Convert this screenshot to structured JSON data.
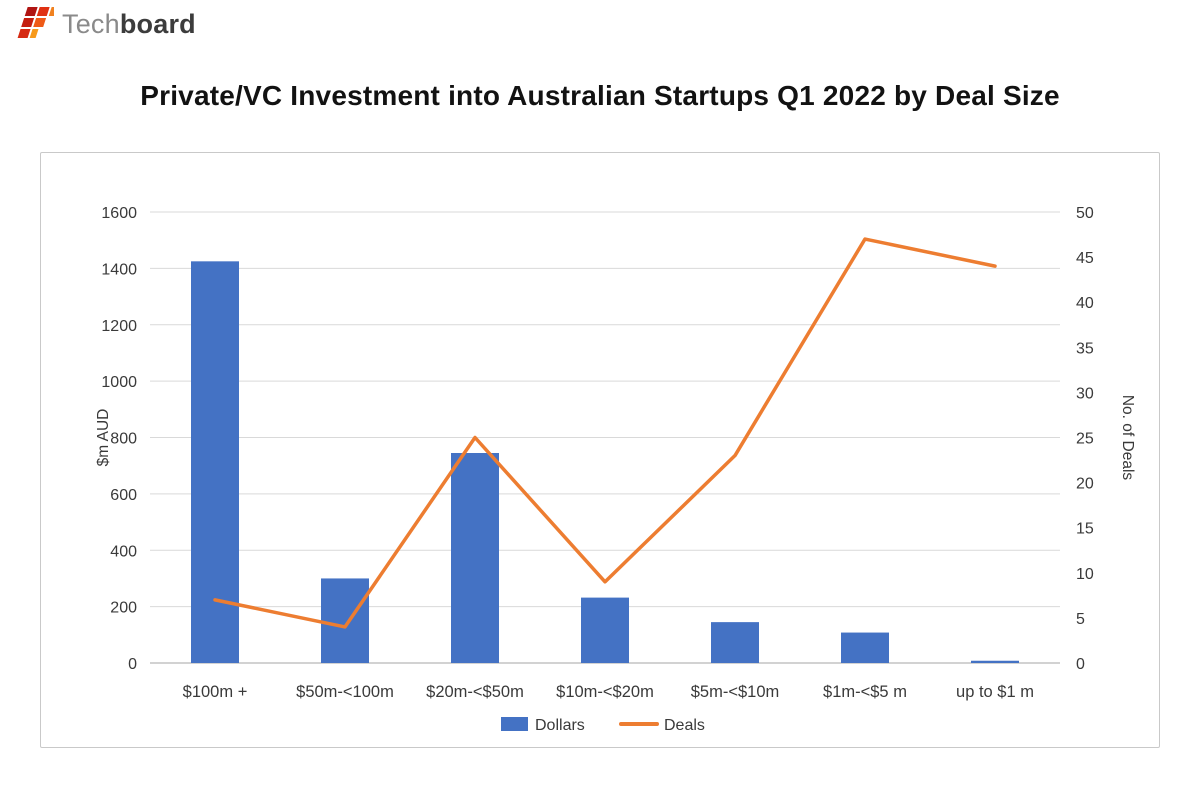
{
  "brand": {
    "name_light": "Tech",
    "name_bold": "board"
  },
  "page_title": "Private/VC Investment into Australian Startups Q1 2022 by Deal Size",
  "chart_data": {
    "type": "bar+line",
    "title": "Private/VC Investment into Australian Startups Q1 2022 by Deal Size",
    "categories": [
      "$100m +",
      "$50m-<100m",
      "$20m-<$50m",
      "$10m-<$20m",
      "$5m-<$10m",
      "$1m-<$5 m",
      "up to $1 m"
    ],
    "series": [
      {
        "name": "Dollars",
        "type": "bar",
        "axis": "left",
        "color": "#4472C4",
        "values": [
          1425,
          300,
          745,
          232,
          145,
          108,
          8
        ]
      },
      {
        "name": "Deals",
        "type": "line",
        "axis": "right",
        "color": "#ED7D31",
        "values": [
          7,
          4,
          25,
          9,
          23,
          47,
          44
        ]
      }
    ],
    "left_axis": {
      "label": "$m AUD",
      "min": 0,
      "max": 1600,
      "step": 200
    },
    "right_axis": {
      "label": "No. of Deals",
      "min": 0,
      "max": 50,
      "step": 5
    },
    "grid": true,
    "legend_position": "bottom"
  },
  "colors": {
    "grid": "#d9d9d9",
    "axis_line": "#a6a6a6",
    "text": "#3a3a3a"
  }
}
